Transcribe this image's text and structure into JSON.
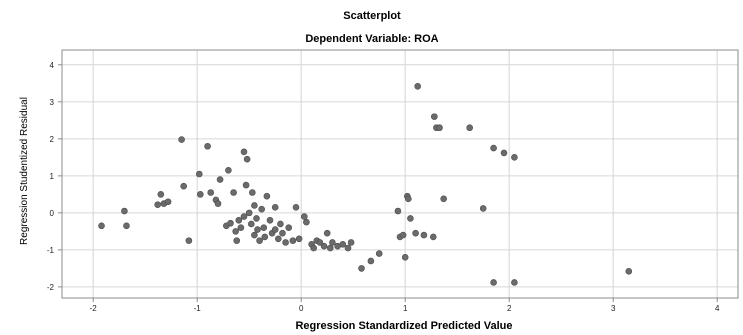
{
  "chart_data": {
    "type": "scatter",
    "title": "Scatterplot",
    "subtitle": "Dependent Variable: ROA",
    "xlabel": "Regression Standardized Predicted Value",
    "ylabel": "Regression Studentized Residual",
    "xlim": [
      -2.3,
      4.2
    ],
    "ylim": [
      -2.3,
      4.4
    ],
    "xticks": [
      -2,
      -1,
      0,
      1,
      2,
      3,
      4
    ],
    "yticks": [
      -2,
      -1,
      0,
      1,
      2,
      3,
      4
    ],
    "grid": true,
    "point_color": "#6b6b6b",
    "points": [
      {
        "x": -1.92,
        "y": -0.35
      },
      {
        "x": -1.7,
        "y": 0.05
      },
      {
        "x": -1.68,
        "y": -0.35
      },
      {
        "x": -1.38,
        "y": 0.22
      },
      {
        "x": -1.35,
        "y": 0.5
      },
      {
        "x": -1.32,
        "y": 0.25
      },
      {
        "x": -1.28,
        "y": 0.3
      },
      {
        "x": -1.15,
        "y": 1.98
      },
      {
        "x": -1.13,
        "y": 0.72
      },
      {
        "x": -1.08,
        "y": -0.75
      },
      {
        "x": -0.98,
        "y": 1.05
      },
      {
        "x": -0.97,
        "y": 0.5
      },
      {
        "x": -0.9,
        "y": 1.8
      },
      {
        "x": -0.87,
        "y": 0.55
      },
      {
        "x": -0.82,
        "y": 0.35
      },
      {
        "x": -0.8,
        "y": 0.25
      },
      {
        "x": -0.78,
        "y": 0.9
      },
      {
        "x": -0.72,
        "y": -0.35
      },
      {
        "x": -0.7,
        "y": 1.15
      },
      {
        "x": -0.68,
        "y": -0.28
      },
      {
        "x": -0.65,
        "y": 0.55
      },
      {
        "x": -0.63,
        "y": -0.5
      },
      {
        "x": -0.62,
        "y": -0.75
      },
      {
        "x": -0.6,
        "y": -0.2
      },
      {
        "x": -0.58,
        "y": -0.4
      },
      {
        "x": -0.55,
        "y": 1.65
      },
      {
        "x": -0.55,
        "y": -0.1
      },
      {
        "x": -0.53,
        "y": 0.75
      },
      {
        "x": -0.52,
        "y": 1.45
      },
      {
        "x": -0.5,
        "y": 0.0
      },
      {
        "x": -0.48,
        "y": -0.3
      },
      {
        "x": -0.47,
        "y": 0.55
      },
      {
        "x": -0.45,
        "y": 0.2
      },
      {
        "x": -0.45,
        "y": -0.6
      },
      {
        "x": -0.43,
        "y": -0.15
      },
      {
        "x": -0.42,
        "y": -0.45
      },
      {
        "x": -0.4,
        "y": -0.75
      },
      {
        "x": -0.38,
        "y": 0.1
      },
      {
        "x": -0.36,
        "y": -0.4
      },
      {
        "x": -0.35,
        "y": -0.65
      },
      {
        "x": -0.33,
        "y": 0.45
      },
      {
        "x": -0.3,
        "y": -0.2
      },
      {
        "x": -0.28,
        "y": -0.55
      },
      {
        "x": -0.25,
        "y": 0.15
      },
      {
        "x": -0.25,
        "y": -0.45
      },
      {
        "x": -0.22,
        "y": -0.7
      },
      {
        "x": -0.2,
        "y": -0.3
      },
      {
        "x": -0.18,
        "y": -0.55
      },
      {
        "x": -0.15,
        "y": -0.8
      },
      {
        "x": -0.12,
        "y": -0.4
      },
      {
        "x": -0.08,
        "y": -0.75
      },
      {
        "x": -0.05,
        "y": 0.15
      },
      {
        "x": -0.02,
        "y": -0.7
      },
      {
        "x": 0.03,
        "y": -0.1
      },
      {
        "x": 0.05,
        "y": -0.25
      },
      {
        "x": 0.1,
        "y": -0.85
      },
      {
        "x": 0.12,
        "y": -0.95
      },
      {
        "x": 0.15,
        "y": -0.75
      },
      {
        "x": 0.18,
        "y": -0.8
      },
      {
        "x": 0.22,
        "y": -0.9
      },
      {
        "x": 0.25,
        "y": -0.55
      },
      {
        "x": 0.28,
        "y": -0.95
      },
      {
        "x": 0.3,
        "y": -0.8
      },
      {
        "x": 0.35,
        "y": -0.9
      },
      {
        "x": 0.4,
        "y": -0.85
      },
      {
        "x": 0.45,
        "y": -0.95
      },
      {
        "x": 0.48,
        "y": -0.8
      },
      {
        "x": 0.58,
        "y": -1.5
      },
      {
        "x": 0.67,
        "y": -1.3
      },
      {
        "x": 0.75,
        "y": -1.1
      },
      {
        "x": 0.93,
        "y": 0.05
      },
      {
        "x": 0.95,
        "y": -0.65
      },
      {
        "x": 0.98,
        "y": -0.6
      },
      {
        "x": 1.0,
        "y": -1.2
      },
      {
        "x": 1.02,
        "y": 0.45
      },
      {
        "x": 1.03,
        "y": 0.38
      },
      {
        "x": 1.05,
        "y": -0.15
      },
      {
        "x": 1.1,
        "y": -0.55
      },
      {
        "x": 1.12,
        "y": 3.42
      },
      {
        "x": 1.18,
        "y": -0.6
      },
      {
        "x": 1.27,
        "y": -0.65
      },
      {
        "x": 1.28,
        "y": 2.6
      },
      {
        "x": 1.3,
        "y": 2.3
      },
      {
        "x": 1.33,
        "y": 2.3
      },
      {
        "x": 1.37,
        "y": 0.38
      },
      {
        "x": 1.62,
        "y": 2.3
      },
      {
        "x": 1.75,
        "y": 0.12
      },
      {
        "x": 1.85,
        "y": 1.75
      },
      {
        "x": 1.85,
        "y": -1.88
      },
      {
        "x": 1.95,
        "y": 1.62
      },
      {
        "x": 2.05,
        "y": 1.5
      },
      {
        "x": 2.05,
        "y": -1.88
      },
      {
        "x": 3.15,
        "y": -1.58
      }
    ]
  }
}
